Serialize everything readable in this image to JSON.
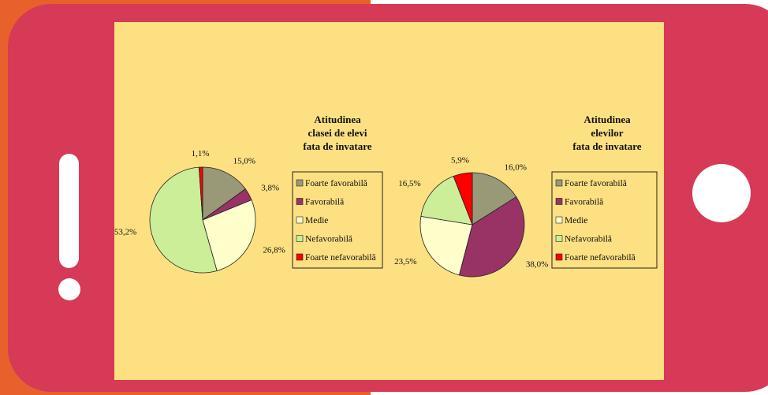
{
  "chart_data": [
    {
      "type": "pie",
      "title": [
        "Atitudinea",
        "clasei de elevi",
        "fata de invatare"
      ],
      "categories": [
        "Foarte favorabilă",
        "Favorabilă",
        "Medie",
        "Nefavorabilă",
        "Foarte nefavorabilă"
      ],
      "values": [
        15.0,
        3.8,
        26.8,
        53.2,
        1.1
      ],
      "value_labels": [
        "15,0%",
        "3,8%",
        "26,8%",
        "53,2%",
        "1,1%"
      ],
      "colors": [
        "#999977",
        "#993366",
        "#ffffcc",
        "#ccee99",
        "#ff0000"
      ]
    },
    {
      "type": "pie",
      "title": [
        "Atitudinea",
        "elevilor",
        "fata de invatare"
      ],
      "categories": [
        "Foarte favorabilă",
        "Favorabilă",
        "Medie",
        "Nefavorabilă",
        "Foarte nefavorabilă"
      ],
      "values": [
        16.0,
        38.0,
        23.5,
        16.5,
        5.9
      ],
      "value_labels": [
        "16,0%",
        "38,0%",
        "23,5%",
        "16,5%",
        "5,9%"
      ],
      "colors": [
        "#999977",
        "#993366",
        "#ffffcc",
        "#ccee99",
        "#ff0000"
      ]
    }
  ]
}
